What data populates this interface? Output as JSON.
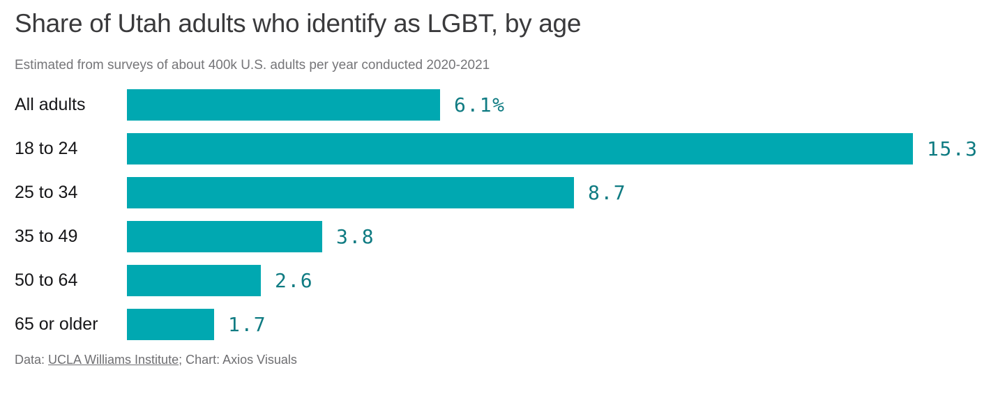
{
  "header": {
    "title": "Share of Utah adults who identify as LGBT, by age",
    "subtitle": "Estimated from surveys of about 400k U.S. adults per year conducted 2020-2021"
  },
  "chart_data": {
    "type": "bar",
    "orientation": "horizontal",
    "title": "Share of Utah adults who identify as LGBT, by age",
    "subtitle": "Estimated from surveys of about 400k U.S. adults per year conducted 2020-2021",
    "categories": [
      "All adults",
      "18 to 24",
      "25 to 34",
      "35 to 49",
      "50 to 64",
      "65 or older"
    ],
    "values": [
      6.1,
      15.3,
      8.7,
      3.8,
      2.6,
      1.7
    ],
    "value_labels": [
      "6.1%",
      "15.3",
      "8.7",
      "3.8",
      "2.6",
      "1.7"
    ],
    "unit": "percent",
    "xlim": [
      0,
      15.3
    ],
    "grid": false,
    "legend": false,
    "bar_color": "#00a8b1",
    "value_label_color": "#0f7b82"
  },
  "footer": {
    "prefix": "Data: ",
    "source_link": "UCLA Williams Institute",
    "suffix": "; Chart: Axios Visuals"
  }
}
